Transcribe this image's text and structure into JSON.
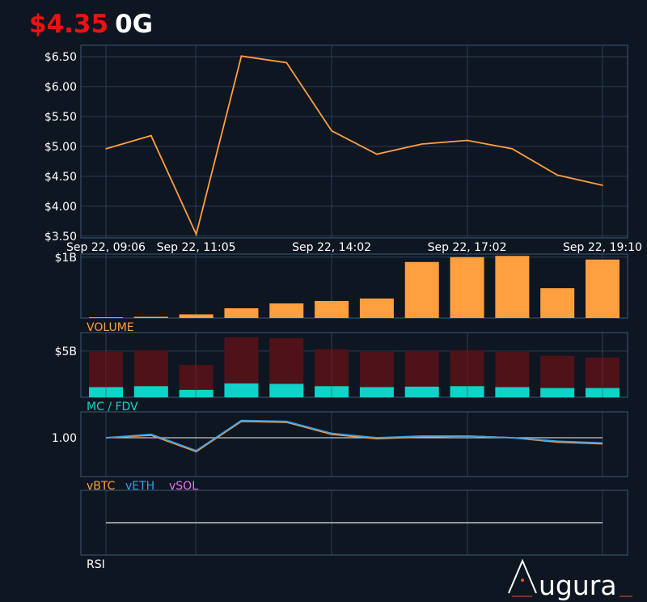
{
  "header": {
    "price": "$4.35",
    "ticker": "0G"
  },
  "colors": {
    "background": "#0e1621",
    "price": "#ee1111",
    "price_line": "#ff9f40",
    "volume_bar": "#ff9f40",
    "mc_bar": "#0fd3c8",
    "fdv_bar": "#4f1219",
    "vbtc": "#ff9f40",
    "veth": "#36a2eb",
    "vsol": "#e675e6",
    "rsi_line": "#c0c0c0",
    "grid": "#2a3d55",
    "frame": "#3a5a7a",
    "text": "#ffffff",
    "logo_accent": "#e2552b"
  },
  "logo": {
    "text": "ugura"
  },
  "chart_data": [
    {
      "id": "price",
      "type": "line",
      "x": [
        "Sep 22, 09:06",
        "Sep 22, 10:05",
        "Sep 22, 11:05",
        "Sep 22, 12:04",
        "Sep 22, 13:03",
        "Sep 22, 14:02",
        "Sep 22, 15:02",
        "Sep 22, 16:02",
        "Sep 22, 17:02",
        "Sep 22, 18:01",
        "Sep 22, 18:40",
        "Sep 22, 19:10"
      ],
      "xticks": [
        "Sep 22, 09:06",
        "Sep 22, 11:05",
        "Sep 22, 14:02",
        "Sep 22, 17:02",
        "Sep 22, 19:10"
      ],
      "values": [
        4.96,
        5.18,
        3.53,
        6.51,
        6.4,
        5.26,
        4.87,
        5.04,
        5.1,
        4.96,
        4.52,
        4.35
      ],
      "yticks": [
        "$3.50",
        "$4.00",
        "$4.50",
        "$5.00",
        "$5.50",
        "$6.00",
        "$6.50"
      ],
      "ylim": [
        3.47,
        6.69
      ]
    },
    {
      "id": "volume",
      "type": "bar",
      "title": "VOLUME",
      "values": [
        0.012,
        0.02,
        0.06,
        0.16,
        0.24,
        0.28,
        0.32,
        0.92,
        1.0,
        1.02,
        0.49,
        0.96
      ],
      "yticks": [
        "$1B"
      ],
      "ylim": [
        0,
        1.05
      ]
    },
    {
      "id": "mc_fdv",
      "type": "bar",
      "title": "MC / FDV",
      "series": [
        {
          "name": "FDV",
          "values": [
            4.9,
            5.1,
            3.5,
            6.5,
            6.4,
            5.2,
            4.9,
            5.0,
            5.1,
            4.9,
            4.5,
            4.3
          ]
        },
        {
          "name": "MC",
          "values": [
            1.1,
            1.2,
            0.8,
            1.5,
            1.45,
            1.2,
            1.1,
            1.15,
            1.2,
            1.1,
            1.0,
            1.0
          ]
        }
      ],
      "yticks": [
        "$5B"
      ],
      "ylim": [
        0,
        7
      ]
    },
    {
      "id": "relative",
      "type": "line",
      "yticks": [
        "1.00"
      ],
      "ylim": [
        0.55,
        1.3
      ],
      "series": [
        {
          "name": "vBTC",
          "values": [
            1.0,
            1.03,
            0.84,
            1.19,
            1.18,
            1.04,
            0.99,
            1.01,
            1.02,
            1.0,
            0.95,
            0.93
          ]
        },
        {
          "name": "vETH",
          "values": [
            1.0,
            1.04,
            0.85,
            1.2,
            1.19,
            1.05,
            1.0,
            1.02,
            1.02,
            1.0,
            0.96,
            0.94
          ]
        },
        {
          "name": "vSOL",
          "values": []
        }
      ]
    },
    {
      "id": "rsi",
      "type": "line",
      "title": "RSI",
      "values": [
        50,
        50,
        50,
        50,
        50,
        50,
        50,
        50,
        50,
        50,
        50,
        50
      ],
      "ylim": [
        0,
        100
      ]
    }
  ]
}
